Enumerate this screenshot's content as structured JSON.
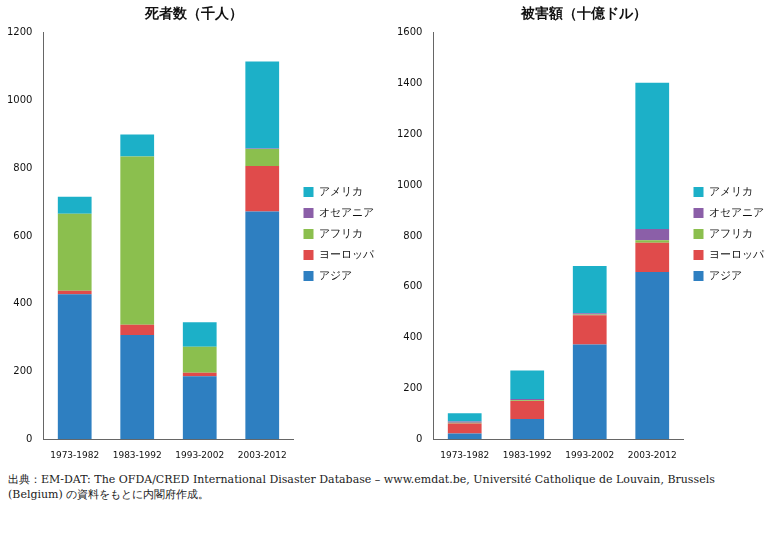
{
  "chart_data": [
    {
      "type": "bar",
      "title": "死者数（千人）",
      "stacked": true,
      "grid": false,
      "legend": "right",
      "categories": [
        "1973-1982",
        "1983-1992",
        "1993-2002",
        "2003-2012"
      ],
      "series": [
        {
          "name": "アジア",
          "color": "#2e7fc1",
          "values": [
            428,
            308,
            186,
            672
          ]
        },
        {
          "name": "ヨーロッパ",
          "color": "#e04b4b",
          "values": [
            10,
            30,
            10,
            135
          ]
        },
        {
          "name": "アフリカ",
          "color": "#8bbf4e",
          "values": [
            228,
            497,
            77,
            50
          ]
        },
        {
          "name": "オセアニア",
          "color": "#8b5fa8",
          "values": [
            0,
            0,
            0,
            1
          ]
        },
        {
          "name": "アメリカ",
          "color": "#1cb0c8",
          "values": [
            50,
            65,
            72,
            257
          ]
        }
      ],
      "ylim": [
        0,
        1200
      ],
      "yticks": [
        0,
        200,
        400,
        600,
        800,
        1000,
        1200
      ]
    },
    {
      "type": "bar",
      "title": "被害額（十億ドル）",
      "stacked": true,
      "grid": false,
      "legend": "right",
      "categories": [
        "1973-1982",
        "1983-1992",
        "1993-2002",
        "2003-2012"
      ],
      "series": [
        {
          "name": "アジア",
          "color": "#2e7fc1",
          "values": [
            22,
            80,
            373,
            658
          ]
        },
        {
          "name": "ヨーロッパ",
          "color": "#e04b4b",
          "values": [
            40,
            70,
            115,
            115
          ]
        },
        {
          "name": "アフリカ",
          "color": "#8bbf4e",
          "values": [
            3,
            3,
            3,
            10
          ]
        },
        {
          "name": "オセアニア",
          "color": "#8b5fa8",
          "values": [
            5,
            5,
            5,
            45
          ]
        },
        {
          "name": "アメリカ",
          "color": "#1cb0c8",
          "values": [
            32,
            112,
            186,
            575
          ]
        }
      ],
      "ylim": [
        0,
        1600
      ],
      "yticks": [
        0,
        200,
        400,
        600,
        800,
        1000,
        1200,
        1400,
        1600
      ]
    }
  ],
  "source": "出典：EM-DAT: The OFDA/CRED International Disaster Database – www.emdat.be, Université Catholique de Louvain, Brussels (Belgium) の資料をもとに内閣府作成。"
}
